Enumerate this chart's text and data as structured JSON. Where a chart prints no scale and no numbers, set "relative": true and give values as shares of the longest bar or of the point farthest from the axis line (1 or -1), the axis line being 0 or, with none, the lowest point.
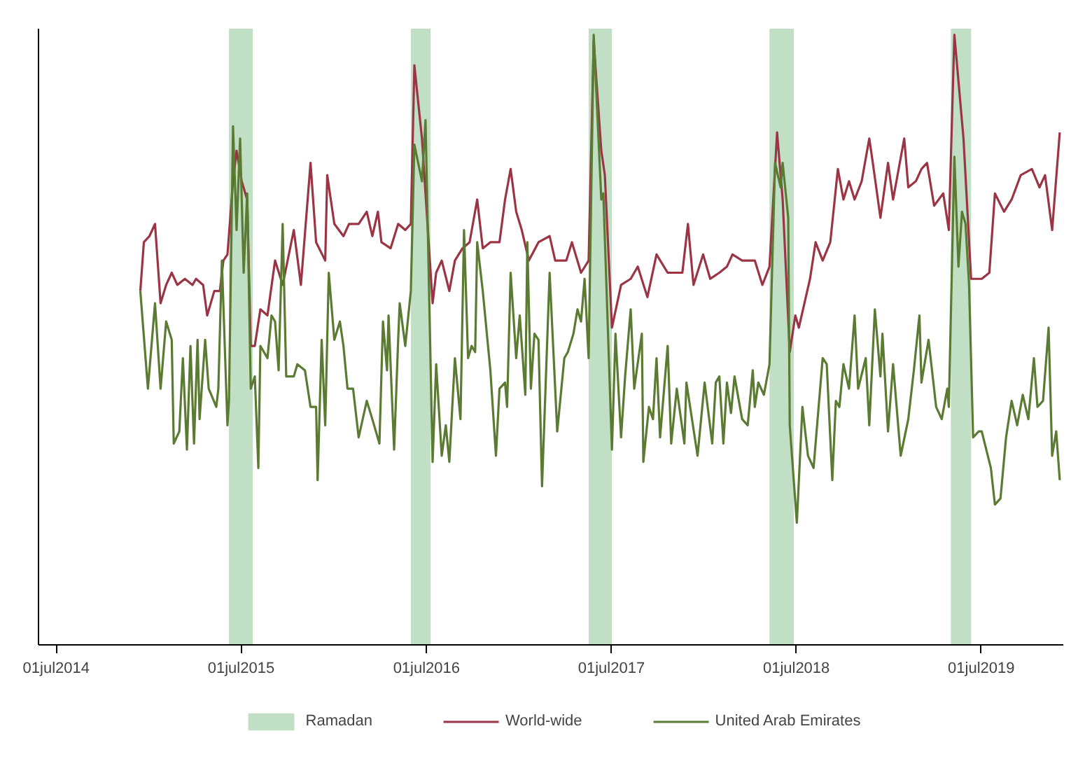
{
  "chart_data": {
    "type": "line",
    "relative": true,
    "legend": "bottom",
    "line_style": "solid",
    "xlim": [
      "2014-05-27",
      "2019-12-10"
    ],
    "xticks": [
      {
        "value": "2014-07-01",
        "label": "01jul2014"
      },
      {
        "value": "2015-07-01",
        "label": "01jul2015"
      },
      {
        "value": "2016-07-01",
        "label": "01jul2016"
      },
      {
        "value": "2017-07-01",
        "label": "01jul2017"
      },
      {
        "value": "2018-07-01",
        "label": "01jul2018"
      },
      {
        "value": "2019-07-01",
        "label": "01jul2019"
      }
    ],
    "bands": [
      {
        "axis": "x",
        "from": "2015-06-07",
        "to": "2015-07-24",
        "label": "Ramadan",
        "color": "#c0dfc4"
      },
      {
        "axis": "x",
        "from": "2016-05-31",
        "to": "2016-07-09",
        "color": "#c0dfc4"
      },
      {
        "axis": "x",
        "from": "2017-05-17",
        "to": "2017-07-02",
        "color": "#c0dfc4"
      },
      {
        "axis": "x",
        "from": "2018-05-09",
        "to": "2018-06-26",
        "color": "#c0dfc4"
      },
      {
        "axis": "x",
        "from": "2019-05-02",
        "to": "2019-06-11",
        "color": "#c0dfc4"
      }
    ],
    "series": [
      {
        "name": "World-wide",
        "color": "#9b3545",
        "x": [
          "2014-12-14",
          "2014-12-21",
          "2015-01-01",
          "2015-01-12",
          "2015-01-23",
          "2015-02-03",
          "2015-02-14",
          "2015-02-25",
          "2015-03-12",
          "2015-03-27",
          "2015-04-03",
          "2015-04-17",
          "2015-04-25",
          "2015-05-09",
          "2015-05-20",
          "2015-05-27",
          "2015-06-04",
          "2015-06-15",
          "2015-06-22",
          "2015-07-02",
          "2015-07-13",
          "2015-07-20",
          "2015-07-28",
          "2015-08-08",
          "2015-08-22",
          "2015-09-06",
          "2015-09-21",
          "2015-10-13",
          "2015-10-27",
          "2015-11-15",
          "2015-11-26",
          "2015-12-14",
          "2015-12-18",
          "2016-01-01",
          "2016-01-19",
          "2016-01-30",
          "2016-02-18",
          "2016-03-05",
          "2016-03-16",
          "2016-03-27",
          "2016-04-03",
          "2016-04-21",
          "2016-05-06",
          "2016-05-20",
          "2016-05-31",
          "2016-06-07",
          "2016-06-22",
          "2016-07-13",
          "2016-07-20",
          "2016-07-31",
          "2016-08-15",
          "2016-08-26",
          "2016-09-10",
          "2016-09-24",
          "2016-10-09",
          "2016-10-20",
          "2016-11-04",
          "2016-11-22",
          "2016-12-03",
          "2016-12-14",
          "2016-12-25",
          "2017-01-05",
          "2017-01-19",
          "2017-02-07",
          "2017-03-01",
          "2017-03-12",
          "2017-04-03",
          "2017-04-14",
          "2017-05-02",
          "2017-05-17",
          "2017-05-27",
          "2017-06-11",
          "2017-06-18",
          "2017-07-02",
          "2017-07-20",
          "2017-08-08",
          "2017-08-22",
          "2017-09-10",
          "2017-09-28",
          "2017-10-20",
          "2017-11-18",
          "2017-11-29",
          "2017-12-10",
          "2017-12-29",
          "2018-01-12",
          "2018-01-30",
          "2018-02-14",
          "2018-02-25",
          "2018-03-16",
          "2018-04-10",
          "2018-04-25",
          "2018-05-09",
          "2018-05-24",
          "2018-06-04",
          "2018-06-18",
          "2018-06-29",
          "2018-07-06",
          "2018-07-28",
          "2018-08-08",
          "2018-08-22",
          "2018-09-06",
          "2018-09-21",
          "2018-10-02",
          "2018-10-13",
          "2018-10-24",
          "2018-11-07",
          "2018-11-22",
          "2018-11-29",
          "2018-12-14",
          "2018-12-29",
          "2019-01-08",
          "2019-01-30",
          "2019-02-07",
          "2019-02-22",
          "2019-03-05",
          "2019-03-16",
          "2019-03-30",
          "2019-04-17",
          "2019-04-28",
          "2019-05-09",
          "2019-05-27",
          "2019-06-11",
          "2019-07-02",
          "2019-07-17",
          "2019-07-28",
          "2019-08-15",
          "2019-08-30",
          "2019-09-17",
          "2019-10-09",
          "2019-10-24",
          "2019-11-04",
          "2019-11-18",
          "2019-12-03"
        ],
        "values": [
          0.58,
          0.66,
          0.67,
          0.69,
          0.56,
          0.59,
          0.61,
          0.59,
          0.6,
          0.59,
          0.6,
          0.59,
          0.54,
          0.58,
          0.58,
          0.63,
          0.64,
          0.76,
          0.81,
          0.76,
          0.73,
          0.49,
          0.49,
          0.55,
          0.54,
          0.63,
          0.59,
          0.68,
          0.59,
          0.79,
          0.66,
          0.63,
          0.77,
          0.69,
          0.67,
          0.69,
          0.69,
          0.71,
          0.67,
          0.71,
          0.66,
          0.65,
          0.69,
          0.68,
          0.69,
          0.95,
          0.83,
          0.56,
          0.61,
          0.63,
          0.58,
          0.63,
          0.65,
          0.66,
          0.73,
          0.65,
          0.66,
          0.66,
          0.73,
          0.78,
          0.71,
          0.68,
          0.63,
          0.66,
          0.67,
          0.63,
          0.63,
          0.66,
          0.61,
          0.63,
          0.99,
          0.81,
          0.77,
          0.52,
          0.59,
          0.6,
          0.62,
          0.57,
          0.64,
          0.61,
          0.61,
          0.69,
          0.59,
          0.64,
          0.6,
          0.61,
          0.62,
          0.64,
          0.63,
          0.63,
          0.59,
          0.62,
          0.84,
          0.73,
          0.48,
          0.54,
          0.52,
          0.6,
          0.66,
          0.63,
          0.66,
          0.78,
          0.73,
          0.76,
          0.73,
          0.76,
          0.83,
          0.79,
          0.7,
          0.79,
          0.73,
          0.83,
          0.75,
          0.76,
          0.78,
          0.79,
          0.72,
          0.74,
          0.68,
          1.0,
          0.83,
          0.6,
          0.6,
          0.61,
          0.74,
          0.71,
          0.73,
          0.77,
          0.78,
          0.75,
          0.77,
          0.68,
          0.84
        ]
      },
      {
        "name": "United Arab Emirates",
        "color": "#5b7b33",
        "x": [
          "2014-12-14",
          "2014-12-29",
          "2015-01-12",
          "2015-01-23",
          "2015-02-03",
          "2015-02-14",
          "2015-02-18",
          "2015-03-01",
          "2015-03-08",
          "2015-03-16",
          "2015-03-23",
          "2015-03-30",
          "2015-04-06",
          "2015-04-10",
          "2015-04-21",
          "2015-04-28",
          "2015-05-13",
          "2015-05-17",
          "2015-05-24",
          "2015-06-04",
          "2015-06-07",
          "2015-06-15",
          "2015-06-22",
          "2015-06-29",
          "2015-07-06",
          "2015-07-13",
          "2015-07-20",
          "2015-07-28",
          "2015-08-04",
          "2015-08-08",
          "2015-08-22",
          "2015-08-30",
          "2015-09-06",
          "2015-09-13",
          "2015-09-21",
          "2015-09-28",
          "2015-10-13",
          "2015-10-20",
          "2015-11-04",
          "2015-11-15",
          "2015-11-26",
          "2015-11-29",
          "2015-12-07",
          "2015-12-14",
          "2015-12-21",
          "2016-01-01",
          "2016-01-12",
          "2016-01-19",
          "2016-01-27",
          "2016-02-07",
          "2016-02-18",
          "2016-03-05",
          "2016-03-16",
          "2016-03-30",
          "2016-04-06",
          "2016-04-14",
          "2016-04-17",
          "2016-04-28",
          "2016-05-06",
          "2016-05-09",
          "2016-05-20",
          "2016-05-31",
          "2016-06-07",
          "2016-06-22",
          "2016-06-29",
          "2016-07-13",
          "2016-07-20",
          "2016-07-31",
          "2016-08-08",
          "2016-08-15",
          "2016-08-26",
          "2016-09-06",
          "2016-09-13",
          "2016-09-21",
          "2016-09-28",
          "2016-10-05",
          "2016-10-09",
          "2016-10-20",
          "2016-11-04",
          "2016-11-15",
          "2016-11-22",
          "2016-12-03",
          "2016-12-07",
          "2016-12-14",
          "2016-12-25",
          "2017-01-01",
          "2017-01-12",
          "2017-01-16",
          "2017-01-23",
          "2017-01-30",
          "2017-02-07",
          "2017-02-14",
          "2017-03-01",
          "2017-03-16",
          "2017-03-30",
          "2017-04-06",
          "2017-04-17",
          "2017-04-25",
          "2017-05-02",
          "2017-05-09",
          "2017-05-17",
          "2017-05-27",
          "2017-06-11",
          "2017-06-15",
          "2017-07-02",
          "2017-07-09",
          "2017-07-20",
          "2017-07-28",
          "2017-08-08",
          "2017-08-15",
          "2017-08-30",
          "2017-09-02",
          "2017-09-13",
          "2017-09-21",
          "2017-09-28",
          "2017-10-05",
          "2017-10-20",
          "2017-10-27",
          "2017-11-07",
          "2017-11-22",
          "2017-11-26",
          "2017-12-18",
          "2018-01-01",
          "2018-01-16",
          "2018-01-23",
          "2018-01-30",
          "2018-02-07",
          "2018-02-14",
          "2018-02-22",
          "2018-03-01",
          "2018-03-16",
          "2018-03-27",
          "2018-04-06",
          "2018-04-10",
          "2018-04-17",
          "2018-04-28",
          "2018-05-09",
          "2018-05-20",
          "2018-05-31",
          "2018-06-04",
          "2018-06-15",
          "2018-06-18",
          "2018-07-02",
          "2018-07-13",
          "2018-07-24",
          "2018-08-04",
          "2018-08-22",
          "2018-08-30",
          "2018-09-10",
          "2018-09-17",
          "2018-09-24",
          "2018-10-02",
          "2018-10-13",
          "2018-10-24",
          "2018-10-31",
          "2018-11-15",
          "2018-11-22",
          "2018-12-03",
          "2018-12-14",
          "2018-12-18",
          "2018-12-29",
          "2019-01-08",
          "2019-01-23",
          "2019-02-07",
          "2019-02-18",
          "2019-03-01",
          "2019-03-05",
          "2019-03-19",
          "2019-04-03",
          "2019-04-14",
          "2019-04-25",
          "2019-04-28",
          "2019-05-09",
          "2019-05-17",
          "2019-05-24",
          "2019-05-31",
          "2019-06-07",
          "2019-06-15",
          "2019-06-26",
          "2019-07-02",
          "2019-07-20",
          "2019-07-28",
          "2019-08-08",
          "2019-08-19",
          "2019-08-30",
          "2019-09-10",
          "2019-09-21",
          "2019-10-02",
          "2019-10-13",
          "2019-10-20",
          "2019-10-31",
          "2019-11-11",
          "2019-11-18",
          "2019-11-26",
          "2019-12-03"
        ],
        "values": [
          0.58,
          0.42,
          0.56,
          0.42,
          0.53,
          0.5,
          0.33,
          0.35,
          0.47,
          0.32,
          0.49,
          0.33,
          0.5,
          0.37,
          0.5,
          0.42,
          0.39,
          0.42,
          0.63,
          0.36,
          0.4,
          0.85,
          0.68,
          0.83,
          0.61,
          0.74,
          0.42,
          0.44,
          0.29,
          0.49,
          0.47,
          0.54,
          0.53,
          0.45,
          0.69,
          0.44,
          0.44,
          0.46,
          0.45,
          0.39,
          0.39,
          0.27,
          0.5,
          0.36,
          0.61,
          0.5,
          0.53,
          0.49,
          0.42,
          0.42,
          0.34,
          0.4,
          0.37,
          0.33,
          0.53,
          0.45,
          0.54,
          0.32,
          0.5,
          0.56,
          0.49,
          0.58,
          0.82,
          0.76,
          0.86,
          0.3,
          0.46,
          0.31,
          0.36,
          0.3,
          0.47,
          0.37,
          0.68,
          0.47,
          0.49,
          0.48,
          0.66,
          0.58,
          0.45,
          0.31,
          0.42,
          0.43,
          0.39,
          0.61,
          0.47,
          0.54,
          0.41,
          0.66,
          0.42,
          0.51,
          0.5,
          0.26,
          0.61,
          0.35,
          0.47,
          0.48,
          0.51,
          0.55,
          0.53,
          0.6,
          0.47,
          1.0,
          0.73,
          0.74,
          0.32,
          0.51,
          0.34,
          0.44,
          0.55,
          0.42,
          0.51,
          0.3,
          0.39,
          0.37,
          0.47,
          0.34,
          0.49,
          0.33,
          0.42,
          0.33,
          0.43,
          0.31,
          0.43,
          0.33,
          0.43,
          0.44,
          0.33,
          0.43,
          0.38,
          0.44,
          0.37,
          0.36,
          0.45,
          0.39,
          0.43,
          0.41,
          0.46,
          0.79,
          0.75,
          0.79,
          0.7,
          0.36,
          0.2,
          0.39,
          0.31,
          0.29,
          0.47,
          0.46,
          0.27,
          0.4,
          0.39,
          0.46,
          0.42,
          0.54,
          0.42,
          0.47,
          0.36,
          0.55,
          0.44,
          0.51,
          0.35,
          0.46,
          0.31,
          0.37,
          0.45,
          0.54,
          0.43,
          0.5,
          0.39,
          0.37,
          0.42,
          0.39,
          0.8,
          0.62,
          0.71,
          0.69,
          0.59,
          0.34,
          0.35,
          0.35,
          0.29,
          0.23,
          0.24,
          0.34,
          0.4,
          0.36,
          0.41,
          0.37,
          0.47,
          0.39,
          0.4,
          0.52,
          0.31,
          0.35,
          0.27
        ]
      }
    ]
  }
}
